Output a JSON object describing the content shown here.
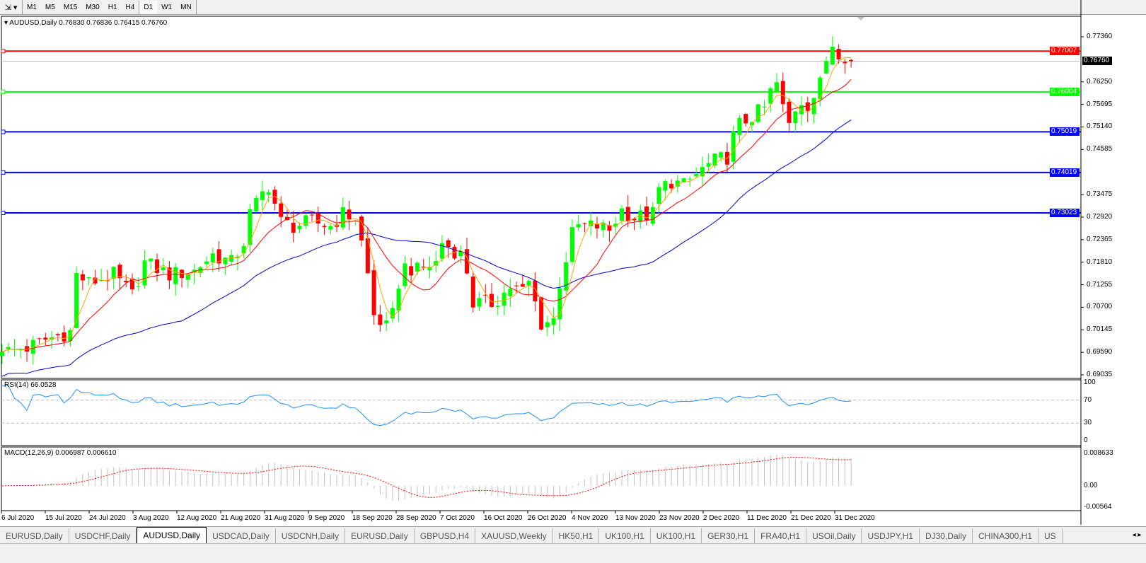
{
  "toolbar": {
    "timeframes": [
      "M1",
      "M5",
      "M15",
      "M30",
      "H1",
      "H4",
      "D1",
      "W1",
      "MN"
    ],
    "active": "D1"
  },
  "chart": {
    "title": "AUDUSD,Daily  0.76830 0.76836 0.76415 0.76760",
    "symbol": "AUDUSD",
    "period": "Daily",
    "ohlc": {
      "open": 0.7683,
      "high": 0.76836,
      "low": 0.76415,
      "close": 0.7676
    },
    "current_price": "0.76760",
    "colors": {
      "bull": "#00ff00",
      "bear": "#ff0000",
      "ma_fast": "#ffa500",
      "ma_mid": "#ff0000",
      "ma_slow": "#0000cd",
      "rsi": "#1e90ff",
      "macd_hist": "#c0c0c0",
      "macd_signal": "#ff0000"
    },
    "price_ticks": [
      "0.77360",
      "0.76250",
      "0.75695",
      "0.75140",
      "0.74585",
      "0.73475",
      "0.72920",
      "0.72365",
      "0.71810",
      "0.71255",
      "0.70700",
      "0.70145",
      "0.69590",
      "0.69035"
    ],
    "levels": [
      {
        "price": "0.77007",
        "color": "#ff0000"
      },
      {
        "price": "0.76004",
        "color": "#00ff00"
      },
      {
        "price": "0.75019",
        "color": "#0000ff"
      },
      {
        "price": "0.74019",
        "color": "#0000ff"
      },
      {
        "price": "0.73023",
        "color": "#0000ff"
      }
    ],
    "date_labels": [
      "6 Jul 2020",
      "15 Jul 2020",
      "24 Jul 2020",
      "3 Aug 2020",
      "12 Aug 2020",
      "21 Aug 2020",
      "31 Aug 2020",
      "9 Sep 2020",
      "18 Sep 2020",
      "28 Sep 2020",
      "7 Oct 2020",
      "16 Oct 2020",
      "26 Oct 2020",
      "4 Nov 2020",
      "13 Nov 2020",
      "23 Nov 2020",
      "2 Dec 2020",
      "11 Dec 2020",
      "21 Dec 2020",
      "31 Dec 2020"
    ],
    "close_keypoints": [
      [
        0,
        0.696
      ],
      [
        4,
        0.697
      ],
      [
        7,
        0.699
      ],
      [
        11,
        0.701
      ],
      [
        12,
        0.715
      ],
      [
        14,
        0.713
      ],
      [
        18,
        0.715
      ],
      [
        21,
        0.71
      ],
      [
        23,
        0.718
      ],
      [
        27,
        0.715
      ],
      [
        31,
        0.716
      ],
      [
        34,
        0.72
      ],
      [
        37,
        0.718
      ],
      [
        39,
        0.723
      ],
      [
        40,
        0.73
      ],
      [
        42,
        0.735
      ],
      [
        43,
        0.737
      ],
      [
        45,
        0.728
      ],
      [
        47,
        0.727
      ],
      [
        50,
        0.728
      ],
      [
        53,
        0.727
      ],
      [
        55,
        0.73
      ],
      [
        57,
        0.729
      ],
      [
        58,
        0.723
      ],
      [
        59,
        0.715
      ],
      [
        60,
        0.705
      ],
      [
        62,
        0.702
      ],
      [
        63,
        0.705
      ],
      [
        64,
        0.713
      ],
      [
        65,
        0.717
      ],
      [
        67,
        0.716
      ],
      [
        70,
        0.718
      ],
      [
        71,
        0.723
      ],
      [
        74,
        0.72
      ],
      [
        75,
        0.716
      ],
      [
        76,
        0.708
      ],
      [
        79,
        0.708
      ],
      [
        80,
        0.709
      ],
      [
        82,
        0.712
      ],
      [
        84,
        0.711
      ],
      [
        85,
        0.713
      ],
      [
        87,
        0.703
      ],
      [
        89,
        0.704
      ],
      [
        90,
        0.713
      ],
      [
        92,
        0.725
      ],
      [
        93,
        0.727
      ],
      [
        96,
        0.727
      ],
      [
        98,
        0.726
      ],
      [
        100,
        0.731
      ],
      [
        102,
        0.729
      ],
      [
        105,
        0.73
      ],
      [
        106,
        0.736
      ],
      [
        108,
        0.738
      ],
      [
        110,
        0.737
      ],
      [
        113,
        0.741
      ],
      [
        115,
        0.743
      ],
      [
        117,
        0.744
      ],
      [
        118,
        0.749
      ],
      [
        119,
        0.752
      ],
      [
        121,
        0.754
      ],
      [
        123,
        0.756
      ],
      [
        124,
        0.76
      ],
      [
        125,
        0.762
      ],
      [
        126,
        0.756
      ],
      [
        127,
        0.752
      ],
      [
        128,
        0.756
      ],
      [
        129,
        0.758
      ],
      [
        130,
        0.757
      ],
      [
        131,
        0.759
      ],
      [
        132,
        0.762
      ],
      [
        133,
        0.768
      ],
      [
        134,
        0.772
      ],
      [
        135,
        0.77
      ],
      [
        136,
        0.769
      ],
      [
        137,
        0.7676
      ]
    ]
  },
  "rsi": {
    "label": "RSI(14) 66.0528",
    "ticks": [
      "100",
      "70",
      "30",
      "0"
    ]
  },
  "macd": {
    "label": "MACD(12,26,9) 0.006987 0.006610",
    "ticks": [
      "0.008633",
      "0.00",
      "-0.00564"
    ]
  },
  "tabs": [
    "EURUSD,Daily",
    "USDCHF,Daily",
    "AUDUSD,Daily",
    "USDCAD,Daily",
    "USDCNH,Daily",
    "EURUSD,Daily",
    "GBPUSD,H4",
    "XAUUSD,Weekly",
    "HK50,H1",
    "UK100,H1",
    "UK100,H1",
    "GER30,H1",
    "FRA40,H1",
    "USOil,Daily",
    "USDJPY,H1",
    "DJ30,Daily",
    "CHINA300,H1",
    "US"
  ],
  "active_tab": "AUDUSD,Daily"
}
